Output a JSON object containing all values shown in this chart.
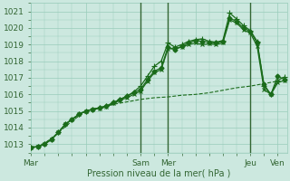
{
  "xlabel": "Pression niveau de la mer( hPa )",
  "bg_color": "#cce8df",
  "grid_color": "#99ccbb",
  "line_color": "#1a6b1a",
  "vline_color": "#336633",
  "font_color": "#336633",
  "ylim": [
    1012.5,
    1021.5
  ],
  "yticks": [
    1013,
    1014,
    1015,
    1016,
    1017,
    1018,
    1019,
    1020,
    1021
  ],
  "xlim": [
    0,
    112
  ],
  "xtick_positions": [
    0,
    24,
    48,
    60,
    72,
    96,
    108
  ],
  "xtick_labels": [
    "Mar",
    "",
    "Sam",
    "Mer",
    "",
    "Jeu",
    "Ven"
  ],
  "vlines_x": [
    48,
    60,
    96
  ],
  "series1_x": [
    0,
    3,
    6,
    9,
    12,
    15,
    18,
    21,
    24,
    27,
    30,
    33,
    36,
    39,
    42,
    45,
    48,
    51,
    54,
    57,
    60,
    63,
    66,
    69,
    72,
    75,
    78,
    81,
    84,
    87,
    90,
    93,
    96,
    99,
    102,
    105,
    108,
    111
  ],
  "series1_y": [
    1012.8,
    1012.85,
    1013.0,
    1013.3,
    1013.7,
    1014.2,
    1014.5,
    1014.8,
    1015.0,
    1015.1,
    1015.2,
    1015.3,
    1015.5,
    1015.7,
    1015.9,
    1016.1,
    1016.3,
    1016.9,
    1017.4,
    1017.6,
    1018.85,
    1018.7,
    1018.9,
    1019.1,
    1019.25,
    1019.2,
    1019.15,
    1019.1,
    1019.2,
    1020.6,
    1020.4,
    1020.0,
    1019.8,
    1019.1,
    1016.6,
    1016.0,
    1017.1,
    1016.9
  ],
  "series2_x": [
    0,
    3,
    6,
    9,
    12,
    15,
    18,
    21,
    24,
    27,
    30,
    33,
    36,
    39,
    42,
    45,
    48,
    51,
    54,
    57,
    60,
    63,
    66,
    69,
    72,
    75,
    78,
    81,
    84,
    87,
    90,
    93,
    96,
    99,
    102,
    105,
    108,
    111
  ],
  "series2_y": [
    1012.8,
    1012.85,
    1013.0,
    1013.3,
    1013.7,
    1014.2,
    1014.5,
    1014.8,
    1015.0,
    1015.1,
    1015.2,
    1015.3,
    1015.5,
    1015.7,
    1015.9,
    1016.15,
    1016.5,
    1017.1,
    1017.7,
    1018.0,
    1019.1,
    1018.85,
    1019.0,
    1019.2,
    1019.3,
    1019.35,
    1019.2,
    1019.15,
    1019.25,
    1020.9,
    1020.55,
    1020.15,
    1019.85,
    1019.2,
    1016.5,
    1016.0,
    1016.85,
    1017.05
  ],
  "series3_x": [
    0,
    3,
    6,
    9,
    12,
    15,
    18,
    21,
    24,
    27,
    30,
    33,
    36,
    39,
    42,
    45,
    48,
    51,
    54,
    57,
    60,
    63,
    66,
    69,
    72,
    75,
    78,
    81,
    84,
    87,
    90,
    93,
    96,
    99,
    102,
    105,
    108,
    111
  ],
  "series3_y": [
    1012.8,
    1012.85,
    1013.0,
    1013.3,
    1013.7,
    1014.2,
    1014.5,
    1014.8,
    1015.0,
    1015.1,
    1015.15,
    1015.25,
    1015.45,
    1015.65,
    1015.8,
    1016.0,
    1016.2,
    1016.8,
    1017.3,
    1017.5,
    1018.75,
    1018.75,
    1018.85,
    1019.0,
    1019.1,
    1019.0,
    1019.05,
    1019.0,
    1019.1,
    1020.5,
    1020.3,
    1019.9,
    1019.7,
    1018.9,
    1016.3,
    1016.0,
    1016.7,
    1016.85
  ],
  "series4_x": [
    0,
    6,
    12,
    18,
    24,
    30,
    36,
    42,
    48,
    54,
    60,
    66,
    72,
    78,
    84,
    90,
    96,
    102,
    108
  ],
  "series4_y": [
    1012.8,
    1013.05,
    1013.7,
    1014.4,
    1015.0,
    1015.2,
    1015.4,
    1015.55,
    1015.7,
    1015.8,
    1015.85,
    1015.95,
    1016.0,
    1016.1,
    1016.25,
    1016.4,
    1016.5,
    1016.65,
    1016.8
  ]
}
